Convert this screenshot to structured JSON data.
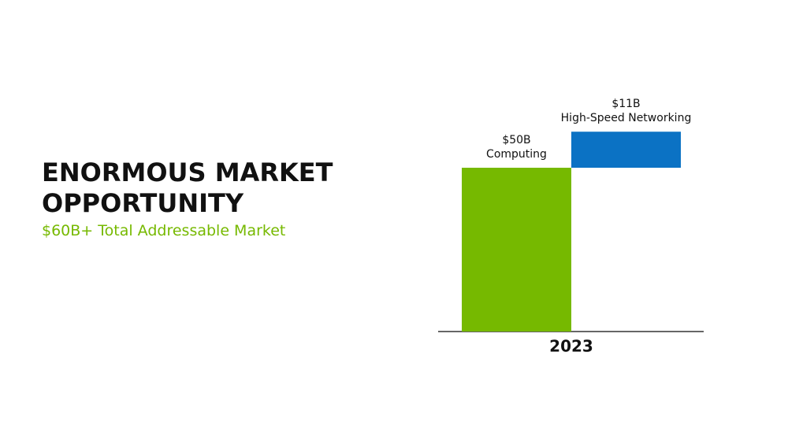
{
  "chart_data": {
    "type": "waterfall",
    "title": "ENORMOUS MARKET OPPORTUNITY",
    "subtitle": "$60B+ Total Addressable Market",
    "x_label": "2023",
    "categories": [
      "Computing",
      "High-Speed Networking"
    ],
    "values": [
      50,
      11
    ],
    "value_labels": [
      "$50B",
      "$11B"
    ],
    "colors": [
      "#76b900",
      "#0b72c4"
    ]
  }
}
